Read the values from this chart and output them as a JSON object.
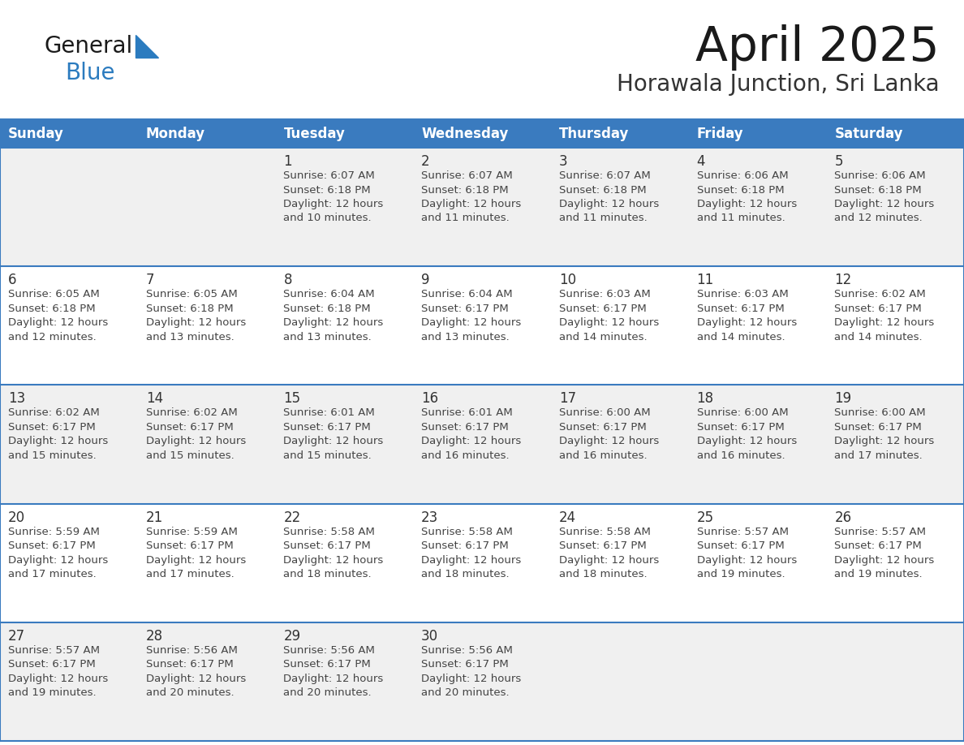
{
  "title": "April 2025",
  "subtitle": "Horawala Junction, Sri Lanka",
  "header_bg": "#3a7bbf",
  "header_text": "#ffffff",
  "row_bg_odd": "#f0f0f0",
  "row_bg_even": "#ffffff",
  "cell_text_color": "#333333",
  "border_color": "#3a7bbf",
  "line_color": "#3a7bbf",
  "days_of_week": [
    "Sunday",
    "Monday",
    "Tuesday",
    "Wednesday",
    "Thursday",
    "Friday",
    "Saturday"
  ],
  "logo_general_color": "#1a1a1a",
  "logo_blue_color": "#2b7bbf",
  "logo_triangle_color": "#2b7bbf",
  "weeks": [
    [
      {
        "day": "",
        "info": ""
      },
      {
        "day": "",
        "info": ""
      },
      {
        "day": "1",
        "info": "Sunrise: 6:07 AM\nSunset: 6:18 PM\nDaylight: 12 hours\nand 10 minutes."
      },
      {
        "day": "2",
        "info": "Sunrise: 6:07 AM\nSunset: 6:18 PM\nDaylight: 12 hours\nand 11 minutes."
      },
      {
        "day": "3",
        "info": "Sunrise: 6:07 AM\nSunset: 6:18 PM\nDaylight: 12 hours\nand 11 minutes."
      },
      {
        "day": "4",
        "info": "Sunrise: 6:06 AM\nSunset: 6:18 PM\nDaylight: 12 hours\nand 11 minutes."
      },
      {
        "day": "5",
        "info": "Sunrise: 6:06 AM\nSunset: 6:18 PM\nDaylight: 12 hours\nand 12 minutes."
      }
    ],
    [
      {
        "day": "6",
        "info": "Sunrise: 6:05 AM\nSunset: 6:18 PM\nDaylight: 12 hours\nand 12 minutes."
      },
      {
        "day": "7",
        "info": "Sunrise: 6:05 AM\nSunset: 6:18 PM\nDaylight: 12 hours\nand 13 minutes."
      },
      {
        "day": "8",
        "info": "Sunrise: 6:04 AM\nSunset: 6:18 PM\nDaylight: 12 hours\nand 13 minutes."
      },
      {
        "day": "9",
        "info": "Sunrise: 6:04 AM\nSunset: 6:17 PM\nDaylight: 12 hours\nand 13 minutes."
      },
      {
        "day": "10",
        "info": "Sunrise: 6:03 AM\nSunset: 6:17 PM\nDaylight: 12 hours\nand 14 minutes."
      },
      {
        "day": "11",
        "info": "Sunrise: 6:03 AM\nSunset: 6:17 PM\nDaylight: 12 hours\nand 14 minutes."
      },
      {
        "day": "12",
        "info": "Sunrise: 6:02 AM\nSunset: 6:17 PM\nDaylight: 12 hours\nand 14 minutes."
      }
    ],
    [
      {
        "day": "13",
        "info": "Sunrise: 6:02 AM\nSunset: 6:17 PM\nDaylight: 12 hours\nand 15 minutes."
      },
      {
        "day": "14",
        "info": "Sunrise: 6:02 AM\nSunset: 6:17 PM\nDaylight: 12 hours\nand 15 minutes."
      },
      {
        "day": "15",
        "info": "Sunrise: 6:01 AM\nSunset: 6:17 PM\nDaylight: 12 hours\nand 15 minutes."
      },
      {
        "day": "16",
        "info": "Sunrise: 6:01 AM\nSunset: 6:17 PM\nDaylight: 12 hours\nand 16 minutes."
      },
      {
        "day": "17",
        "info": "Sunrise: 6:00 AM\nSunset: 6:17 PM\nDaylight: 12 hours\nand 16 minutes."
      },
      {
        "day": "18",
        "info": "Sunrise: 6:00 AM\nSunset: 6:17 PM\nDaylight: 12 hours\nand 16 minutes."
      },
      {
        "day": "19",
        "info": "Sunrise: 6:00 AM\nSunset: 6:17 PM\nDaylight: 12 hours\nand 17 minutes."
      }
    ],
    [
      {
        "day": "20",
        "info": "Sunrise: 5:59 AM\nSunset: 6:17 PM\nDaylight: 12 hours\nand 17 minutes."
      },
      {
        "day": "21",
        "info": "Sunrise: 5:59 AM\nSunset: 6:17 PM\nDaylight: 12 hours\nand 17 minutes."
      },
      {
        "day": "22",
        "info": "Sunrise: 5:58 AM\nSunset: 6:17 PM\nDaylight: 12 hours\nand 18 minutes."
      },
      {
        "day": "23",
        "info": "Sunrise: 5:58 AM\nSunset: 6:17 PM\nDaylight: 12 hours\nand 18 minutes."
      },
      {
        "day": "24",
        "info": "Sunrise: 5:58 AM\nSunset: 6:17 PM\nDaylight: 12 hours\nand 18 minutes."
      },
      {
        "day": "25",
        "info": "Sunrise: 5:57 AM\nSunset: 6:17 PM\nDaylight: 12 hours\nand 19 minutes."
      },
      {
        "day": "26",
        "info": "Sunrise: 5:57 AM\nSunset: 6:17 PM\nDaylight: 12 hours\nand 19 minutes."
      }
    ],
    [
      {
        "day": "27",
        "info": "Sunrise: 5:57 AM\nSunset: 6:17 PM\nDaylight: 12 hours\nand 19 minutes."
      },
      {
        "day": "28",
        "info": "Sunrise: 5:56 AM\nSunset: 6:17 PM\nDaylight: 12 hours\nand 20 minutes."
      },
      {
        "day": "29",
        "info": "Sunrise: 5:56 AM\nSunset: 6:17 PM\nDaylight: 12 hours\nand 20 minutes."
      },
      {
        "day": "30",
        "info": "Sunrise: 5:56 AM\nSunset: 6:17 PM\nDaylight: 12 hours\nand 20 minutes."
      },
      {
        "day": "",
        "info": ""
      },
      {
        "day": "",
        "info": ""
      },
      {
        "day": "",
        "info": ""
      }
    ]
  ]
}
